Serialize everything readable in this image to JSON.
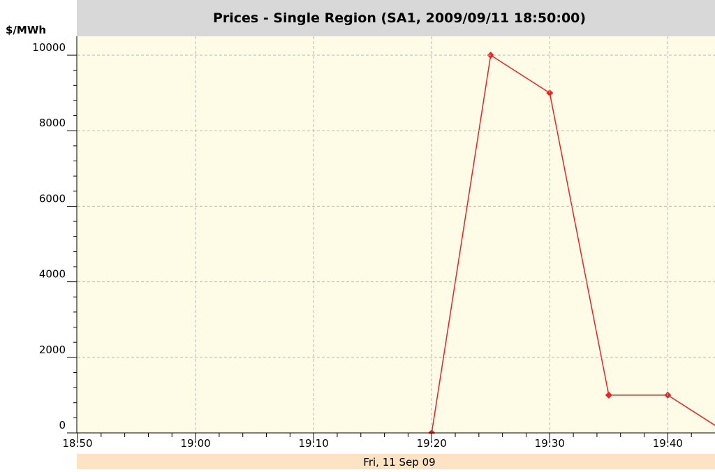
{
  "chart_data": {
    "type": "line",
    "title": "Prices - Single Region (SA1, 2009/09/11 18:50:00)",
    "y_label": "$/MWh",
    "x_label": "Fri, 11 Sep 09",
    "x": [
      "19:20",
      "19:25",
      "19:30",
      "19:35",
      "19:40",
      "19:45"
    ],
    "series": [
      {
        "name": "SA1",
        "color": "#ee2222",
        "values": [
          0,
          10000,
          9000,
          1000,
          1000,
          0
        ]
      }
    ],
    "xlim": [
      "18:50",
      "19:44"
    ],
    "xticks": [
      "18:50",
      "19:00",
      "19:10",
      "19:20",
      "19:30",
      "19:40"
    ],
    "ylim": [
      0,
      10500
    ],
    "yticks": [
      0,
      2000,
      4000,
      6000,
      8000,
      10000
    ],
    "grid": true
  }
}
